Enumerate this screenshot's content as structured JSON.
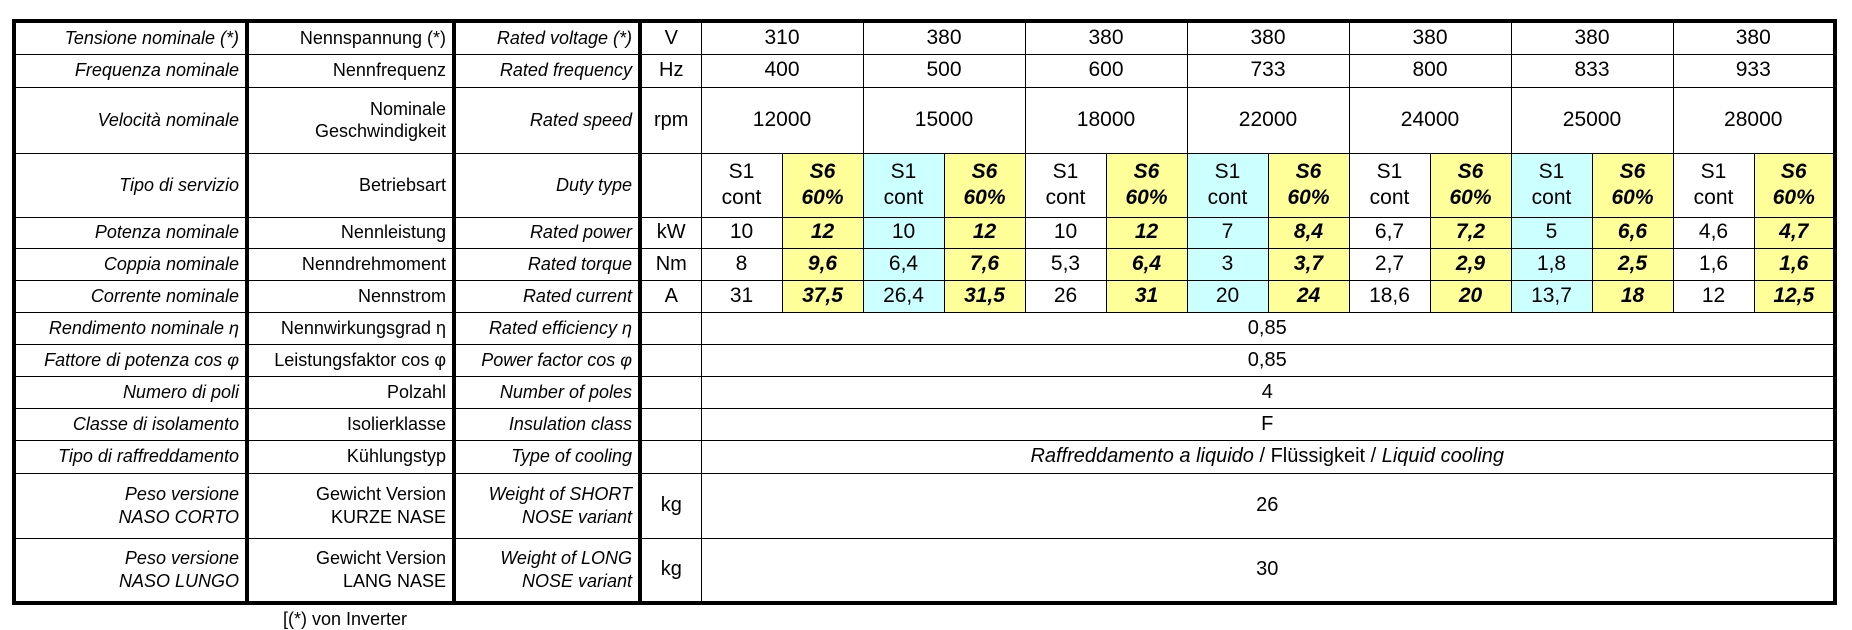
{
  "colors": {
    "s6_fill": "#ffff99",
    "s1_alt_fill": "#ccffff"
  },
  "rows": {
    "voltage": {
      "it": "Tensione nominale (*)",
      "de": "Nennspannung (*)",
      "en": "Rated voltage (*)",
      "unit": "V",
      "values": [
        "310",
        "380",
        "380",
        "380",
        "380",
        "380",
        "380"
      ]
    },
    "frequency": {
      "it": "Frequenza nominale",
      "de": "Nennfrequenz",
      "en": "Rated frequency",
      "unit": "Hz",
      "values": [
        "400",
        "500",
        "600",
        "733",
        "800",
        "833",
        "933"
      ]
    },
    "speed": {
      "it": "Velocità nominale",
      "de1": "Nominale",
      "de2": "Geschwindigkeit",
      "en": "Rated speed",
      "unit": "rpm",
      "values": [
        "12000",
        "15000",
        "18000",
        "22000",
        "24000",
        "25000",
        "28000"
      ]
    },
    "duty": {
      "it": "Tipo di servizio",
      "de": "Betriebsart",
      "en": "Duty type",
      "s1a": "S1",
      "s1b": "cont",
      "s6a": "S6",
      "s6b": "60%"
    },
    "power": {
      "it": "Potenza nominale",
      "de": "Nennleistung",
      "en": "Rated power",
      "unit": "kW",
      "values": [
        "10",
        "12",
        "10",
        "12",
        "10",
        "12",
        "7",
        "8,4",
        "6,7",
        "7,2",
        "5",
        "6,6",
        "4,6",
        "4,7"
      ]
    },
    "torque": {
      "it": "Coppia nominale",
      "de": "Nenndrehmoment",
      "en": "Rated torque",
      "unit": "Nm",
      "values": [
        "8",
        "9,6",
        "6,4",
        "7,6",
        "5,3",
        "6,4",
        "3",
        "3,7",
        "2,7",
        "2,9",
        "1,8",
        "2,5",
        "1,6",
        "1,6"
      ]
    },
    "current": {
      "it": "Corrente nominale",
      "de": "Nennstrom",
      "en": "Rated current",
      "unit": "A",
      "values": [
        "31",
        "37,5",
        "26,4",
        "31,5",
        "26",
        "31",
        "20",
        "24",
        "18,6",
        "20",
        "13,7",
        "18",
        "12",
        "12,5"
      ]
    },
    "efficiency": {
      "it": "Rendimento nominale η",
      "de": "Nennwirkungsgrad η",
      "en": "Rated efficiency η",
      "value": "0,85"
    },
    "pf": {
      "it": "Fattore di potenza cos φ",
      "de": "Leistungsfaktor cos φ",
      "en": "Power factor cos φ",
      "value": "0,85"
    },
    "poles": {
      "it": "Numero di poli",
      "de": "Polzahl",
      "en": "Number of poles",
      "value": "4"
    },
    "insulation": {
      "it": "Classe di isolamento",
      "de": "Isolierklasse",
      "en": "Insulation class",
      "value": "F"
    },
    "cooling": {
      "it": "Tipo di raffreddamento",
      "de": "Kühlungstyp",
      "en": "Type of cooling",
      "v_it": "Raffreddamento a liquido",
      "v_de": " / Flüssigkeit / ",
      "v_en": "Liquid cooling"
    },
    "weight_short": {
      "it1": "Peso versione",
      "it2": "NASO CORTO",
      "de1": "Gewicht Version",
      "de2": "KURZE NASE",
      "en1": "Weight of SHORT",
      "en2": "NOSE variant",
      "unit": "kg",
      "value": "26"
    },
    "weight_long": {
      "it1": "Peso versione",
      "it2": "NASO LUNGO",
      "de1": "Gewicht Version",
      "de2": "LANG NASE",
      "en1": "Weight of LONG",
      "en2": "NOSE variant",
      "unit": "kg",
      "value": "30"
    }
  },
  "footnote": "[(*) von Inverter"
}
